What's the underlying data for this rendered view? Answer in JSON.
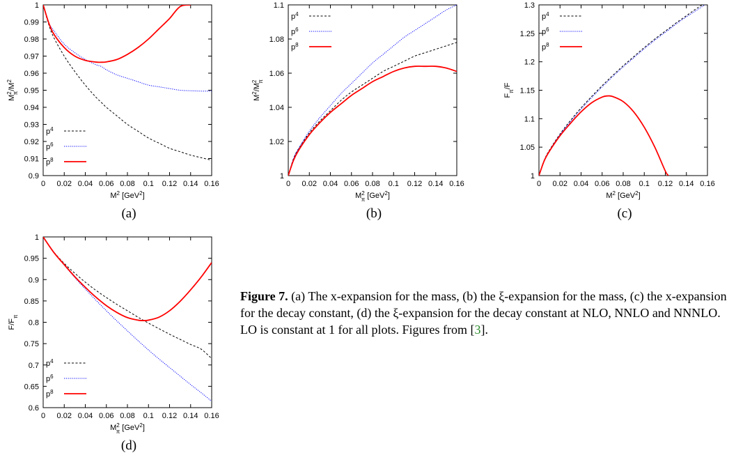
{
  "caption": {
    "label": "Figure 7.",
    "text_before_ref": " (a) The x-expansion for the mass, (b) the ξ-expansion for the mass, (c) the x-expansion for the decay constant, (d) the ξ-expansion for the decay constant at NLO, NNLO and NNNLO. LO is constant at 1 for all plots. Figures from [",
    "ref": "3",
    "text_after_ref": "]."
  },
  "colors": {
    "p4": "#000000",
    "p6": "#0000ff",
    "p8": "#ff0000"
  },
  "chart_data": [
    {
      "id": "a",
      "type": "line",
      "subcaption": "(a)",
      "xlabel": "M² [GeV²]",
      "ylabel": "M²π/M²",
      "xlim": [
        0,
        0.16
      ],
      "ylim": [
        0.9,
        1
      ],
      "xticks": [
        "0",
        "0.02",
        "0.04",
        "0.06",
        "0.08",
        "0.1",
        "0.12",
        "0.14",
        "0.16"
      ],
      "yticks": [
        "0.9",
        "0.91",
        "0.92",
        "0.93",
        "0.94",
        "0.95",
        "0.96",
        "0.97",
        "0.98",
        "0.99",
        "1"
      ],
      "legend_position": "bottom-left",
      "x": [
        0,
        0.005,
        0.01,
        0.02,
        0.03,
        0.04,
        0.05,
        0.055,
        0.06,
        0.07,
        0.08,
        0.09,
        0.1,
        0.11,
        0.12,
        0.13,
        0.14,
        0.15,
        0.16
      ],
      "series": [
        {
          "name": "p⁴",
          "style": "dashed",
          "values": [
            1,
            0.989,
            0.981,
            0.97,
            0.961,
            0.953,
            0.946,
            0.943,
            0.94,
            0.935,
            0.93,
            0.926,
            0.922,
            0.919,
            0.916,
            0.914,
            0.912,
            0.9105,
            0.909
          ]
        },
        {
          "name": "p⁶",
          "style": "dotted",
          "values": [
            1,
            0.99,
            0.985,
            0.977,
            0.972,
            0.968,
            0.965,
            0.964,
            0.962,
            0.959,
            0.957,
            0.955,
            0.953,
            0.952,
            0.951,
            0.95,
            0.9497,
            0.9495,
            0.9495
          ]
        },
        {
          "name": "p⁸",
          "style": "solid",
          "values": [
            1,
            0.99,
            0.983,
            0.975,
            0.97,
            0.9675,
            0.9665,
            0.9664,
            0.9666,
            0.968,
            0.971,
            0.975,
            0.98,
            0.986,
            0.992,
            0.999,
            1.0,
            null,
            null
          ]
        }
      ]
    },
    {
      "id": "b",
      "type": "line",
      "subcaption": "(b)",
      "xlabel": "M²π [GeV²]",
      "ylabel": "M²/M²π",
      "xlim": [
        0,
        0.16
      ],
      "ylim": [
        1,
        1.1
      ],
      "xticks": [
        "0",
        "0.02",
        "0.04",
        "0.06",
        "0.08",
        "0.1",
        "0.12",
        "0.14",
        "0.16"
      ],
      "yticks": [
        "1",
        "1.02",
        "1.04",
        "1.06",
        "1.08",
        "1.1"
      ],
      "legend_position": "top-left",
      "x": [
        0,
        0.005,
        0.01,
        0.02,
        0.03,
        0.04,
        0.05,
        0.06,
        0.07,
        0.08,
        0.09,
        0.1,
        0.11,
        0.12,
        0.13,
        0.14,
        0.15,
        0.16
      ],
      "series": [
        {
          "name": "p⁴",
          "style": "dashed",
          "values": [
            1,
            1.01,
            1.016,
            1.025,
            1.032,
            1.038,
            1.044,
            1.049,
            1.053,
            1.057,
            1.061,
            1.064,
            1.067,
            1.07,
            1.072,
            1.074,
            1.076,
            1.078
          ]
        },
        {
          "name": "p⁶",
          "style": "dotted",
          "values": [
            1,
            1.01,
            1.016,
            1.026,
            1.034,
            1.041,
            1.048,
            1.054,
            1.06,
            1.066,
            1.071,
            1.076,
            1.081,
            1.085,
            1.089,
            1.093,
            1.097,
            1.1
          ]
        },
        {
          "name": "p⁸",
          "style": "solid",
          "values": [
            1,
            1.009,
            1.015,
            1.024,
            1.031,
            1.037,
            1.042,
            1.047,
            1.051,
            1.055,
            1.058,
            1.061,
            1.063,
            1.064,
            1.064,
            1.064,
            1.063,
            1.061
          ]
        }
      ]
    },
    {
      "id": "c",
      "type": "line",
      "subcaption": "(c)",
      "xlabel": "M² [GeV²]",
      "ylabel": "Fπ/F",
      "xlim": [
        0,
        0.16
      ],
      "ylim": [
        1,
        1.3
      ],
      "xticks": [
        "0",
        "0.02",
        "0.04",
        "0.06",
        "0.08",
        "0.1",
        "0.12",
        "0.14",
        "0.16"
      ],
      "yticks": [
        "1",
        "1.05",
        "1.1",
        "1.15",
        "1.2",
        "1.25",
        "1.3"
      ],
      "legend_position": "top-left",
      "x": [
        0,
        0.005,
        0.01,
        0.02,
        0.03,
        0.04,
        0.05,
        0.06,
        0.065,
        0.07,
        0.08,
        0.09,
        0.1,
        0.11,
        0.12,
        0.123,
        0.13,
        0.14,
        0.15,
        0.16
      ],
      "series": [
        {
          "name": "p⁴",
          "style": "dashed",
          "values": [
            1,
            1.027,
            1.045,
            1.073,
            1.097,
            1.119,
            1.139,
            1.158,
            1.167,
            1.176,
            1.193,
            1.209,
            1.225,
            1.24,
            1.254,
            1.258,
            1.268,
            1.281,
            1.294,
            1.306
          ]
        },
        {
          "name": "p⁶",
          "style": "dotted",
          "values": [
            1,
            1.027,
            1.044,
            1.072,
            1.095,
            1.117,
            1.137,
            1.156,
            1.165,
            1.174,
            1.191,
            1.207,
            1.223,
            1.238,
            1.252,
            1.256,
            1.266,
            1.279,
            1.291,
            1.303
          ]
        },
        {
          "name": "p⁸",
          "style": "solid",
          "values": [
            1,
            1.026,
            1.043,
            1.07,
            1.092,
            1.112,
            1.128,
            1.138,
            1.14,
            1.139,
            1.13,
            1.112,
            1.085,
            1.05,
            1.008,
            1.0,
            null,
            null,
            null,
            null
          ]
        }
      ]
    },
    {
      "id": "d",
      "type": "line",
      "subcaption": "(d)",
      "xlabel": "M²π [GeV²]",
      "ylabel": "F/Fπ",
      "xlim": [
        0,
        0.16
      ],
      "ylim": [
        0.6,
        1
      ],
      "xticks": [
        "0",
        "0.02",
        "0.04",
        "0.06",
        "0.08",
        "0.1",
        "0.12",
        "0.14",
        "0.16"
      ],
      "yticks": [
        "0.6",
        "0.65",
        "0.7",
        "0.75",
        "0.8",
        "0.85",
        "0.9",
        "0.95",
        "1"
      ],
      "legend_position": "bottom-left",
      "x": [
        0,
        0.01,
        0.02,
        0.03,
        0.04,
        0.05,
        0.06,
        0.07,
        0.08,
        0.09,
        0.095,
        0.1,
        0.11,
        0.12,
        0.13,
        0.14,
        0.15,
        0.16
      ],
      "series": [
        {
          "name": "p⁴",
          "style": "dashed",
          "values": [
            1,
            0.965,
            0.938,
            0.915,
            0.894,
            0.875,
            0.858,
            0.842,
            0.827,
            0.812,
            0.805,
            0.798,
            0.785,
            0.772,
            0.76,
            0.748,
            0.737,
            0.715
          ]
        },
        {
          "name": "p⁶",
          "style": "dotted",
          "values": [
            1,
            0.965,
            0.934,
            0.905,
            0.878,
            0.852,
            0.827,
            0.803,
            0.78,
            0.757,
            0.746,
            0.735,
            0.714,
            0.694,
            0.674,
            0.654,
            0.635,
            0.615
          ]
        },
        {
          "name": "p⁸",
          "style": "solid",
          "values": [
            1,
            0.964,
            0.935,
            0.907,
            0.882,
            0.859,
            0.839,
            0.823,
            0.811,
            0.805,
            0.804,
            0.805,
            0.812,
            0.827,
            0.849,
            0.876,
            0.906,
            0.94
          ]
        }
      ]
    }
  ]
}
